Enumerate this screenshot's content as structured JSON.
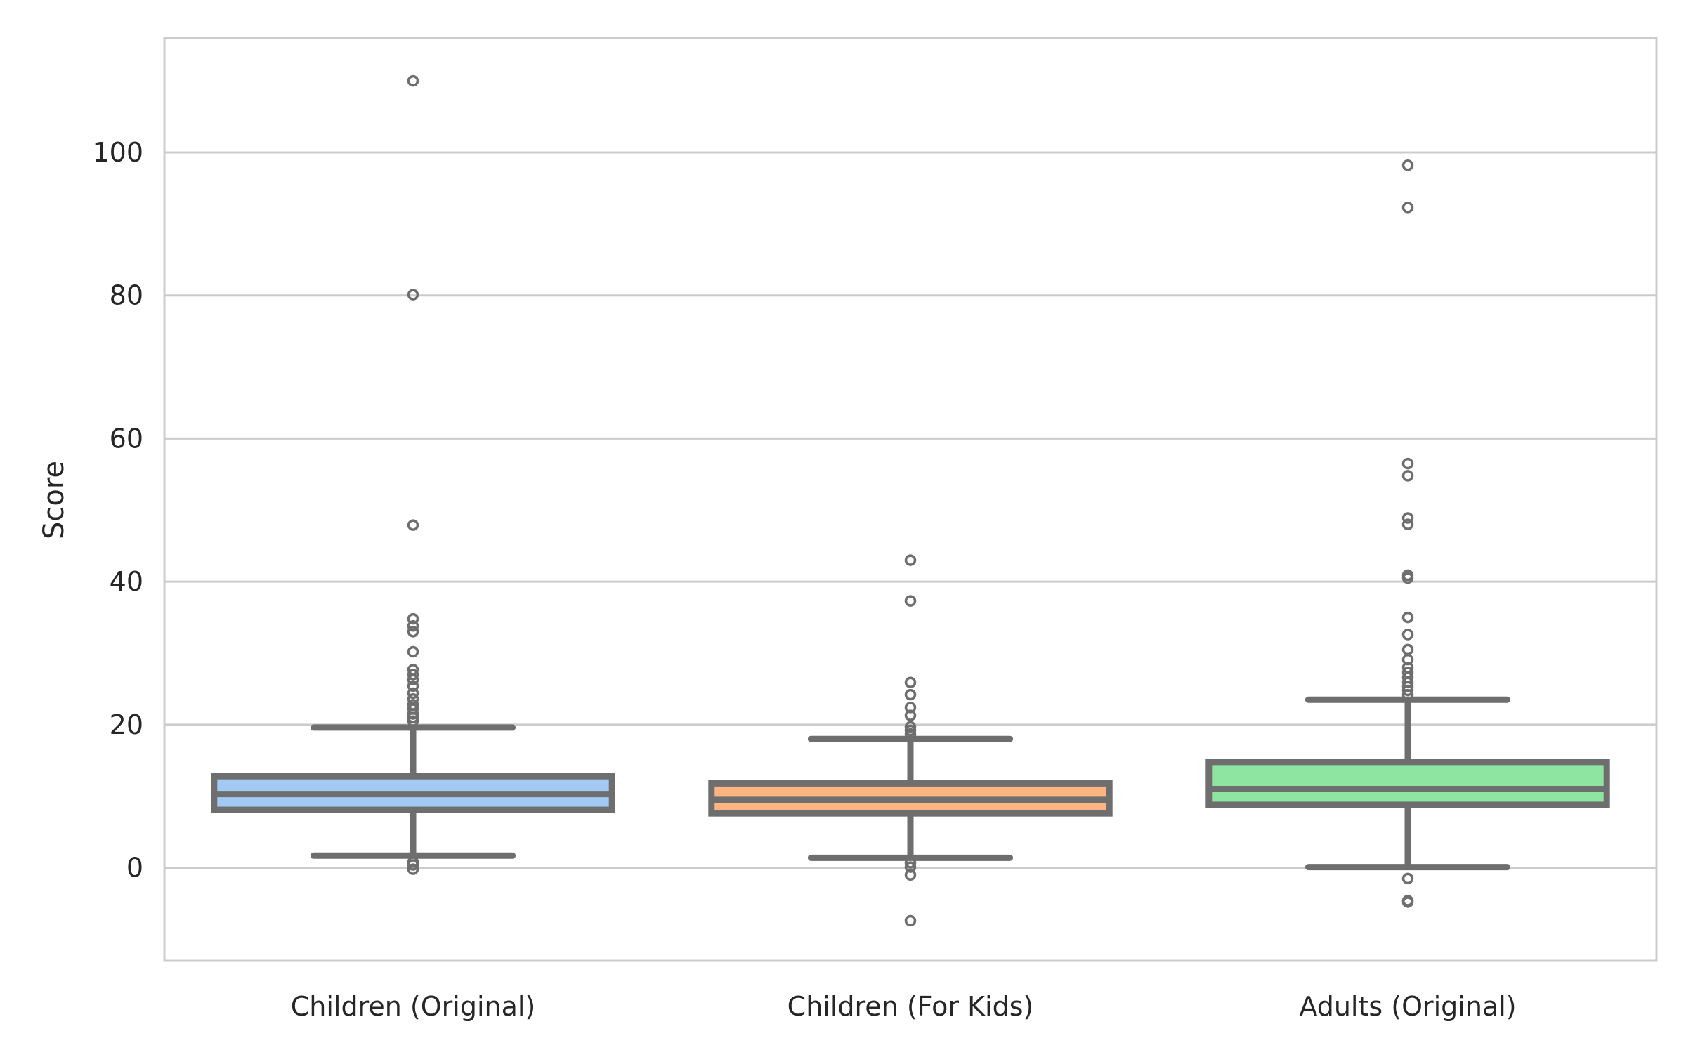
{
  "chart_data": {
    "type": "box",
    "title": "",
    "xlabel": "",
    "ylabel": "Score",
    "ylim": [
      -13,
      116
    ],
    "yticks": [
      0,
      20,
      40,
      60,
      80,
      100
    ],
    "grid": true,
    "legend": "none",
    "line_color": "#6e6e6e",
    "grid_color": "#cccccc",
    "categories": [
      "Children (Original)",
      "Children (For Kids)",
      "Adults (Original)"
    ],
    "series": [
      {
        "name": "Children (Original)",
        "color": "#a1c9f4",
        "whisker_low": 1.7,
        "q1": 8.1,
        "median": 10.3,
        "q3": 12.8,
        "whisker_high": 19.6,
        "outliers": [
          110,
          80.1,
          47.9,
          34.8,
          33.8,
          33.0,
          30.2,
          27.7,
          27.0,
          26.3,
          25.4,
          24.4,
          23.6,
          22.8,
          22.2,
          21.5,
          21.0,
          20.5,
          0.8,
          0.4,
          -0.2
        ]
      },
      {
        "name": "Children (For Kids)",
        "color": "#ffb482",
        "whisker_low": 1.4,
        "q1": 7.6,
        "median": 9.5,
        "q3": 11.8,
        "whisker_high": 18.0,
        "outliers": [
          43.0,
          37.3,
          25.9,
          24.2,
          22.4,
          21.3,
          19.7,
          19.2,
          18.7,
          0.7,
          0.1,
          -1.0,
          -7.4
        ]
      },
      {
        "name": "Adults (Original)",
        "color": "#8de5a1",
        "whisker_low": 0.1,
        "q1": 8.8,
        "median": 11.0,
        "q3": 14.8,
        "whisker_high": 23.5,
        "outliers": [
          98.2,
          92.3,
          56.5,
          54.8,
          48.9,
          48.0,
          40.9,
          40.5,
          35.0,
          32.6,
          30.5,
          29.1,
          28.0,
          27.3,
          26.6,
          25.9,
          25.3,
          24.8,
          24.2,
          -1.5,
          -4.6,
          -4.8
        ]
      }
    ]
  }
}
